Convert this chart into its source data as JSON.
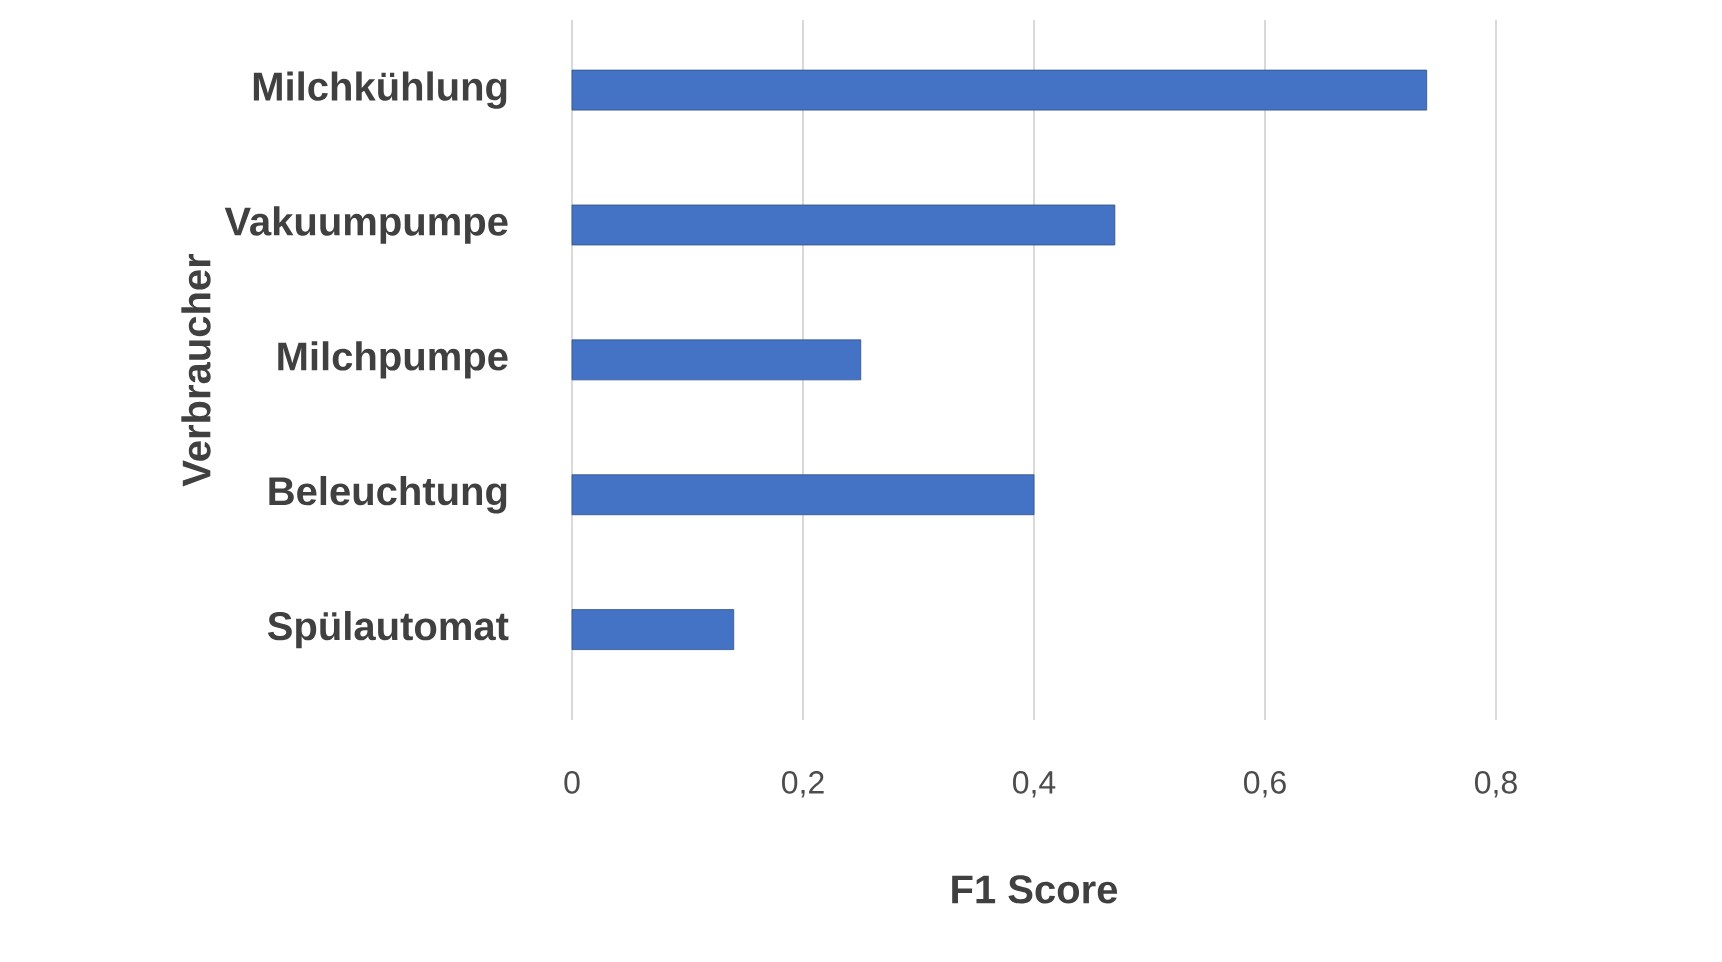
{
  "chart_data": {
    "type": "bar",
    "orientation": "horizontal",
    "xlabel": "F1 Score",
    "ylabel": "Verbraucher",
    "categories": [
      "Milchkühlung",
      "Vakuumpumpe",
      "Milchpumpe",
      "Beleuchtung",
      "Spülautomat"
    ],
    "values": [
      0.74,
      0.47,
      0.25,
      0.4,
      0.14
    ],
    "color": "#4472c4",
    "xlim": [
      0,
      0.8
    ],
    "xticks": [
      0,
      {
        "value": 0.2,
        "label": "0,2"
      },
      {
        "value": 0.4,
        "label": "0,4"
      },
      {
        "value": 0.6,
        "label": "0,6"
      },
      {
        "value": 0.8,
        "label": "0,8"
      }
    ],
    "grid": "x"
  }
}
